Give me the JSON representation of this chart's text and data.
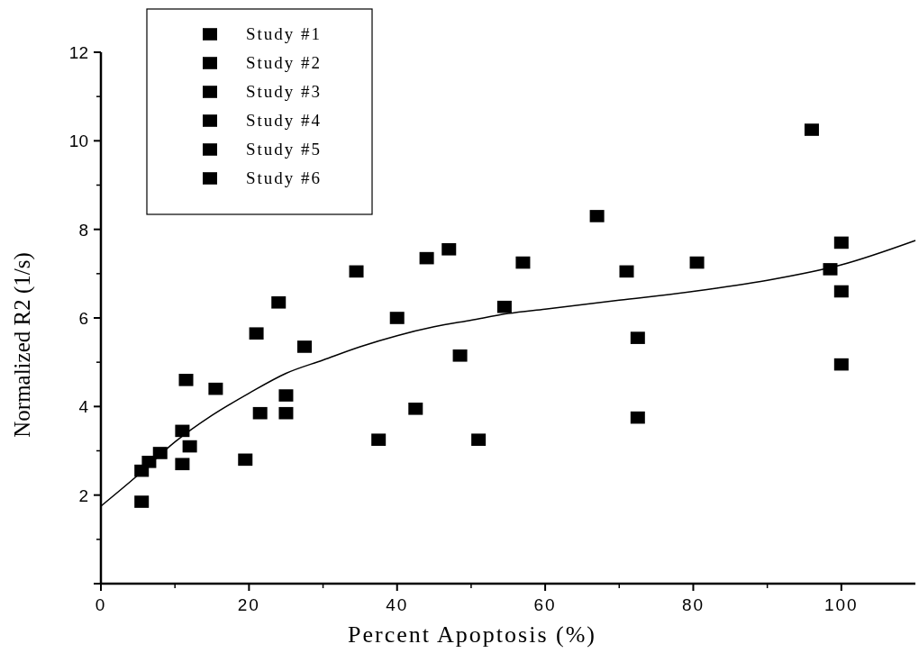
{
  "chart_data": {
    "type": "scatter",
    "xlabel": "Percent Apoptosis (%)",
    "ylabel": "Normalized R2 (1/s)",
    "xlim": [
      0,
      110
    ],
    "ylim": [
      0,
      12
    ],
    "xticks": [
      0,
      20,
      40,
      60,
      80,
      100
    ],
    "yticks": [
      {
        "value": 0,
        "label": null
      },
      2,
      4,
      6,
      8,
      10,
      12
    ],
    "marker": "square",
    "legend": "top left",
    "series": [
      {
        "name": "Study #1",
        "color": "#000000",
        "x": [
          5.5,
          5.5,
          6.5,
          8,
          11,
          11
        ],
        "values": [
          1.85,
          2.55,
          2.75,
          2.95,
          3.45,
          2.7
        ]
      },
      {
        "name": "Study #2",
        "color": "#000000",
        "x": [
          12,
          11.5,
          15.5,
          19.5,
          21,
          21.5
        ],
        "values": [
          3.1,
          4.6,
          4.4,
          2.8,
          5.65,
          3.85
        ]
      },
      {
        "name": "Study #3",
        "color": "#000000",
        "x": [
          24,
          25,
          25,
          27.5,
          34.5,
          37.5
        ],
        "values": [
          6.35,
          4.25,
          3.85,
          5.35,
          7.05,
          3.25
        ]
      },
      {
        "name": "Study #4",
        "color": "#000000",
        "x": [
          40,
          42.5,
          44,
          47,
          48.5,
          51
        ],
        "values": [
          6.0,
          3.95,
          7.35,
          7.55,
          5.15,
          3.25
        ]
      },
      {
        "name": "Study #5",
        "color": "#000000",
        "x": [
          54.5,
          57,
          67,
          71,
          72.5,
          72.5
        ],
        "values": [
          6.25,
          7.25,
          8.3,
          7.05,
          5.55,
          3.75
        ]
      },
      {
        "name": "Study #6",
        "color": "#000000",
        "x": [
          80.5,
          96,
          98.5,
          100,
          100,
          100
        ],
        "values": [
          7.25,
          10.25,
          7.1,
          7.7,
          6.6,
          4.95
        ]
      },
      {
        "type": "line",
        "color": "#000000",
        "marker": "none",
        "x": [
          0,
          5,
          10,
          15,
          20,
          25,
          30,
          35,
          40,
          45,
          50,
          55,
          60,
          70,
          80,
          90,
          100,
          110
        ],
        "values": [
          1.75,
          2.45,
          3.2,
          3.8,
          4.3,
          4.75,
          5.05,
          5.35,
          5.6,
          5.8,
          5.95,
          6.1,
          6.2,
          6.4,
          6.6,
          6.85,
          7.2,
          7.75
        ]
      }
    ]
  }
}
